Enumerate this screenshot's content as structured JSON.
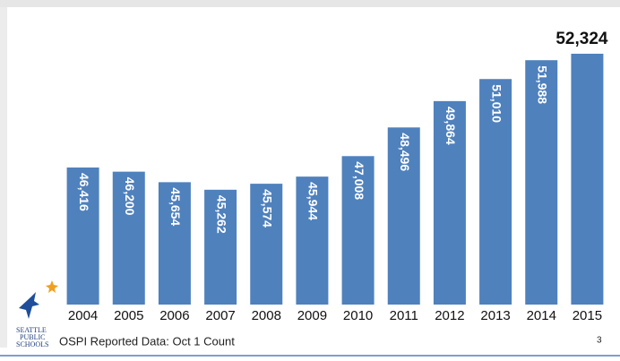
{
  "chart_data": {
    "type": "bar",
    "categories": [
      "2004",
      "2005",
      "2006",
      "2007",
      "2008",
      "2009",
      "2010",
      "2011",
      "2012",
      "2013",
      "2014",
      "2015"
    ],
    "values": [
      46416,
      46200,
      45654,
      45262,
      45574,
      45944,
      47008,
      48496,
      49864,
      51010,
      51988,
      52324
    ],
    "value_labels": [
      "46,416",
      "46,200",
      "45,654",
      "45,262",
      "45,574",
      "45,944",
      "47,008",
      "48,496",
      "49,864",
      "51,010",
      "51,988",
      "52,324"
    ],
    "color": "#4f81bd",
    "ylim": [
      39300,
      53300
    ]
  },
  "footer": {
    "source": "OSPI Reported Data: Oct 1 Count",
    "page_number": "3",
    "logo": [
      "SEATTLE",
      "PUBLIC",
      "SCHOOLS"
    ]
  }
}
